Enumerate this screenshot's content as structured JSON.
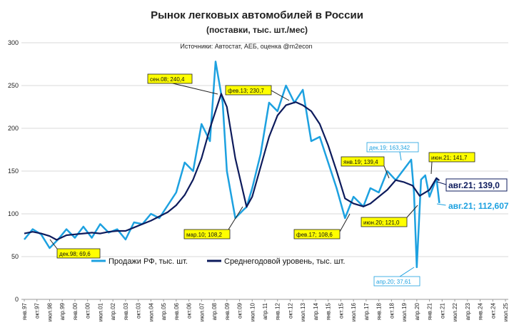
{
  "chart_data": {
    "type": "line",
    "title": "Рынок легковых автомобилей в России",
    "subtitle": "(поставки, тыс. шт./мес)",
    "source": "Источники: Автостат, АЕБ, оценка @m2econ",
    "ylim": [
      0,
      300
    ],
    "yticks": [
      0,
      50,
      100,
      150,
      200,
      250,
      300
    ],
    "x_tick_labels": [
      "янв.97",
      "окт.97",
      "июл.98",
      "апр.99",
      "янв.00",
      "окт.00",
      "июл.01",
      "апр.02",
      "янв.03",
      "окт.03",
      "июл.04",
      "апр.05",
      "янв.06",
      "окт.06",
      "июл.07",
      "апр.08",
      "янв.09",
      "окт.09",
      "июл.10",
      "апр.11",
      "янв.12",
      "окт.12",
      "июл.13",
      "апр.14",
      "янв.15",
      "окт.15",
      "июл.16",
      "апр.17",
      "янв.18",
      "окт.18",
      "июл.19",
      "апр.20",
      "янв.21",
      "окт.21",
      "июл.22",
      "апр.23",
      "янв.24",
      "окт.24",
      "июл.25"
    ],
    "grid": true,
    "legend_position": "bottom",
    "series": [
      {
        "name": "Продажи РФ, тыс. шт.",
        "color": "#1da1e0",
        "x": [
          "янв.97",
          "июл.97",
          "янв.98",
          "июл.98",
          "янв.99",
          "июл.99",
          "янв.00",
          "июл.00",
          "янв.01",
          "июл.01",
          "янв.02",
          "июл.02",
          "янв.03",
          "июл.03",
          "янв.04",
          "июл.04",
          "янв.05",
          "июл.05",
          "янв.06",
          "июл.06",
          "янв.07",
          "июл.07",
          "янв.08",
          "май.08",
          "окт.08",
          "янв.09",
          "июл.09",
          "янв.10",
          "мар.10",
          "июл.10",
          "янв.11",
          "июл.11",
          "янв.12",
          "июл.12",
          "янв.13",
          "июл.13",
          "янв.14",
          "июл.14",
          "янв.15",
          "июл.15",
          "янв.16",
          "июл.16",
          "фев.17",
          "июл.17",
          "янв.18",
          "июл.18",
          "янв.19",
          "дек.19",
          "фев.20",
          "апр.20",
          "июл.20",
          "окт.20",
          "янв.21",
          "июн.21",
          "авг.21"
        ],
        "values": [
          70,
          82,
          76,
          60,
          70,
          82,
          72,
          85,
          72,
          88,
          78,
          82,
          70,
          90,
          88,
          100,
          95,
          110,
          125,
          160,
          150,
          205,
          185,
          278,
          230,
          150,
          95,
          105,
          108,
          130,
          170,
          230,
          220,
          250,
          230,
          245,
          185,
          190,
          160,
          130,
          95,
          120,
          108.6,
          130,
          125,
          150,
          139.4,
          163.342,
          125,
          37.61,
          140,
          145,
          120,
          141.7,
          112.607
        ]
      },
      {
        "name": "Среднегодовой уровень, тыс. шт.",
        "color": "#0d1b5c",
        "x": [
          "янв.97",
          "июл.97",
          "янв.98",
          "июл.98",
          "дек.98",
          "июл.99",
          "янв.00",
          "июл.00",
          "янв.01",
          "июл.01",
          "янв.02",
          "июл.02",
          "янв.03",
          "июл.03",
          "янв.04",
          "июл.04",
          "янв.05",
          "июл.05",
          "янв.06",
          "июл.06",
          "янв.07",
          "июл.07",
          "янв.08",
          "сен.08",
          "янв.09",
          "июл.09",
          "мар.10",
          "июл.10",
          "янв.11",
          "июл.11",
          "янв.12",
          "июл.12",
          "фев.13",
          "июл.13",
          "янв.14",
          "июл.14",
          "янв.15",
          "июл.15",
          "янв.16",
          "июл.16",
          "фев.17",
          "июл.17",
          "янв.18",
          "июл.18",
          "янв.19",
          "июл.19",
          "янв.20",
          "июн.20",
          "янв.21",
          "июн.21",
          "авг.21"
        ],
        "values": [
          77,
          79,
          77,
          74,
          69.6,
          75,
          76,
          77,
          78,
          77,
          79,
          80,
          80,
          84,
          88,
          92,
          97,
          102,
          110,
          122,
          140,
          165,
          200,
          240.4,
          225,
          165,
          108.2,
          120,
          155,
          190,
          215,
          227,
          230.7,
          227,
          220,
          205,
          180,
          150,
          118,
          112,
          108.6,
          112,
          120,
          128,
          139.4,
          137,
          133,
          121,
          128,
          141.7,
          139
        ]
      }
    ],
    "annotations": [
      {
        "text": "сен.08;  240,4",
        "style": "box"
      },
      {
        "text": "фев.13;  230,7",
        "style": "box"
      },
      {
        "text": "мар.10;  108,2",
        "style": "box"
      },
      {
        "text": "дек.98;  69,6",
        "style": "box"
      },
      {
        "text": "фев.17;  108,6",
        "style": "box"
      },
      {
        "text": "янв.19;  139,4",
        "style": "box"
      },
      {
        "text": "июн.20;  121,0",
        "style": "box"
      },
      {
        "text": "июн.21;  141,7",
        "style": "box"
      },
      {
        "text": "дек.19; 163,342",
        "style": "blue"
      },
      {
        "text": "апр.20; 37,61",
        "style": "blue"
      },
      {
        "text": "авг.21;  139,0",
        "style": "big-dark"
      },
      {
        "text": "авг.21; 112,607",
        "style": "big-blue"
      }
    ]
  }
}
